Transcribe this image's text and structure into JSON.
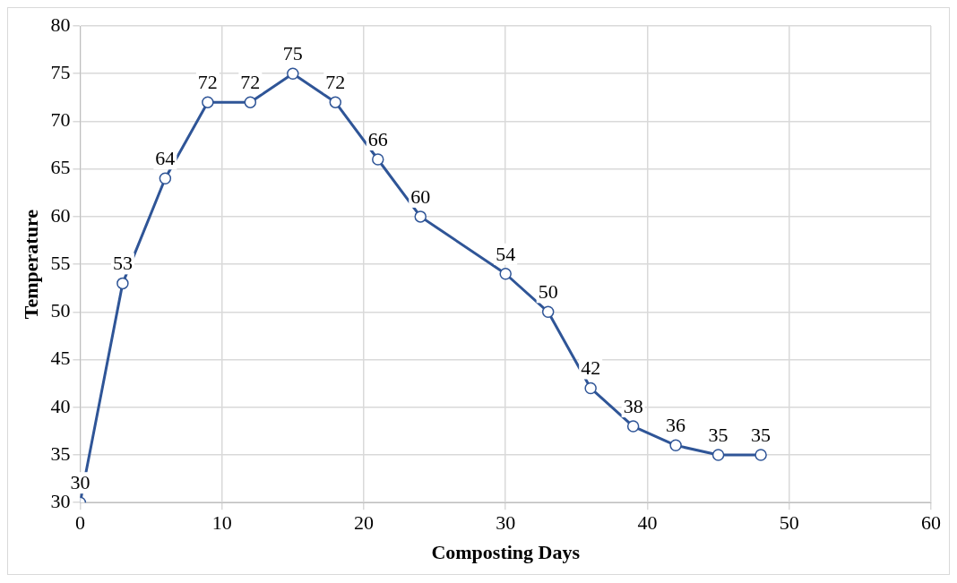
{
  "chart_data": {
    "type": "line",
    "xlabel": "Composting Days",
    "ylabel": "Temperature",
    "x": [
      0,
      3,
      6,
      9,
      12,
      15,
      18,
      21,
      24,
      30,
      33,
      36,
      39,
      42,
      45,
      48
    ],
    "series": [
      {
        "color": "#2f5597",
        "values": [
          30,
          53,
          64,
          72,
          72,
          75,
          72,
          66,
          60,
          54,
          50,
          42,
          38,
          36,
          35,
          35
        ]
      }
    ],
    "xlim": [
      0,
      60
    ],
    "xticks": [
      0,
      10,
      20,
      30,
      40,
      50,
      60
    ],
    "ylim": [
      30,
      80
    ],
    "yticks": [
      30,
      35,
      40,
      45,
      50,
      55,
      60,
      65,
      70,
      75,
      80
    ],
    "grid": true,
    "legend": false,
    "marker": "circle",
    "line_style": "solid",
    "data_labels": true
  }
}
